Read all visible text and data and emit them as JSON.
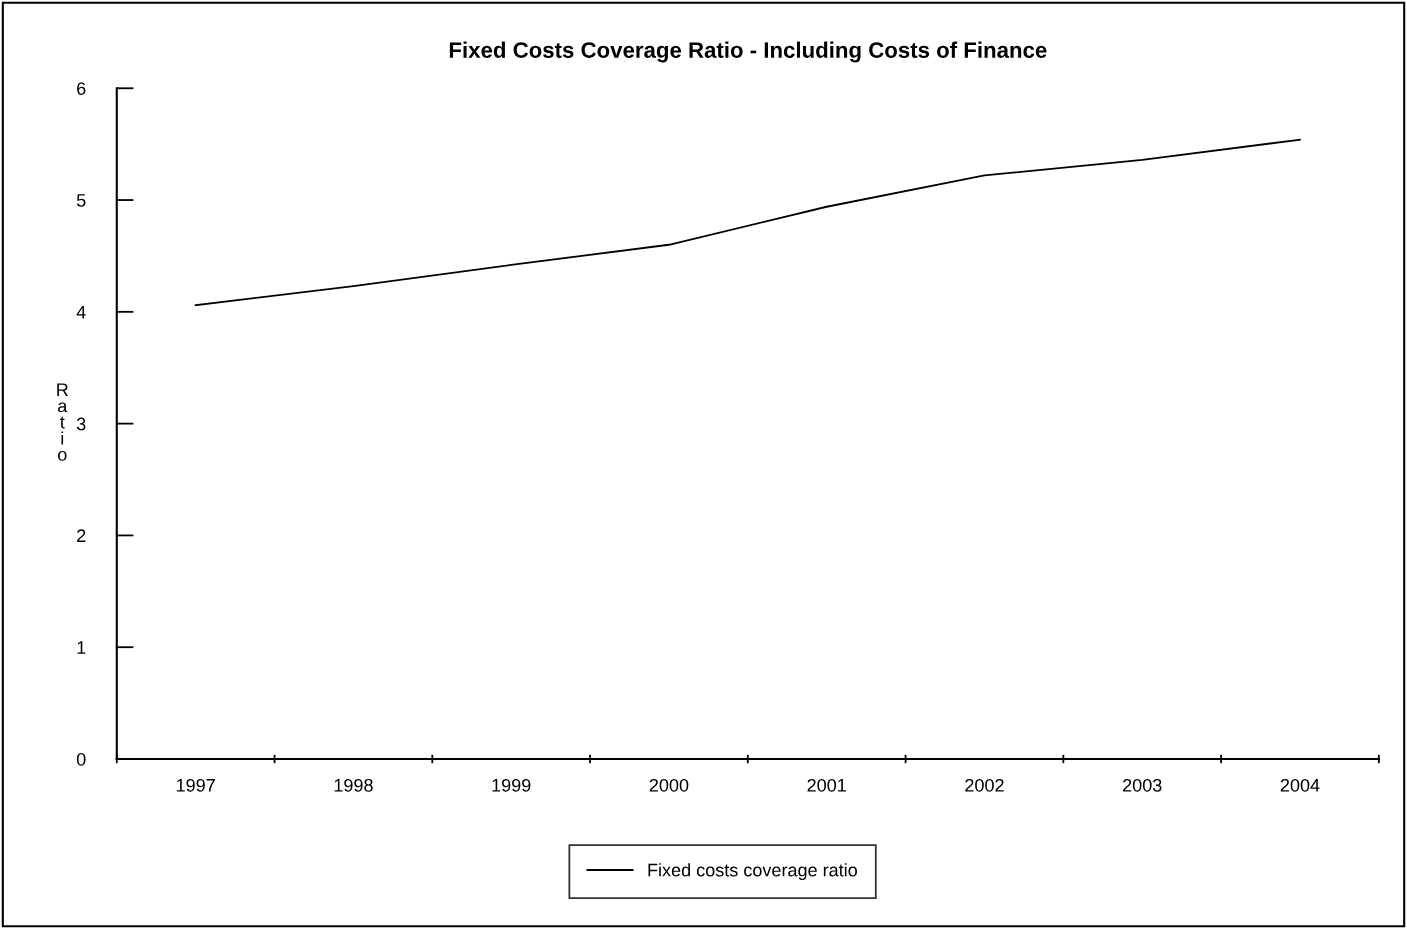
{
  "chart_data": {
    "type": "line",
    "title": "Fixed Costs Coverage Ratio - Including Costs of Finance",
    "ylabel": "Ratio",
    "categories": [
      "1997",
      "1998",
      "1999",
      "2000",
      "2001",
      "2002",
      "2003",
      "2004"
    ],
    "series": [
      {
        "name": "Fixed costs coverage ratio",
        "color": "#000000",
        "values": [
          4.06,
          4.23,
          4.42,
          4.6,
          4.94,
          5.22,
          5.36,
          5.54
        ]
      }
    ],
    "ylim": [
      0,
      6
    ],
    "yticks": [
      0,
      1,
      2,
      3,
      4,
      5,
      6
    ],
    "grid": false,
    "legend": "bottom",
    "marker": "none",
    "line_style": "solid"
  }
}
